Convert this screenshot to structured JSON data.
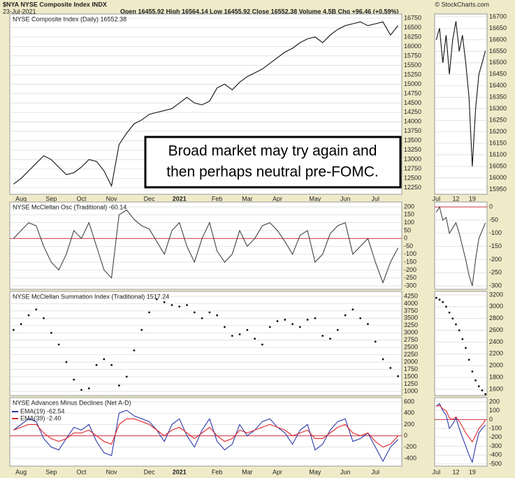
{
  "header": {
    "symbol": "$NYA NYSE Composite Index INDX",
    "date": "23-Jul-2021",
    "quote": "Open 16455.92  High 16564.14  Low 16455.92  Close 16552.38  Volume 4.5B  Chg +96.46 (+0.59%)",
    "source": "© StockCharts.com"
  },
  "chart_data": [
    {
      "type": "line",
      "title": "NYSE Composite Index (Daily) 16552.38",
      "annotation": [
        "Broad market may try again and",
        "then perhaps neutral pre-FOMC."
      ],
      "categories": [
        null,
        "Aug",
        null,
        null,
        null,
        "Sep",
        null,
        null,
        null,
        "Oct",
        null,
        null,
        null,
        "Nov",
        null,
        null,
        null,
        null,
        "Dec",
        null,
        null,
        null,
        "2021",
        null,
        null,
        null,
        null,
        "Feb",
        null,
        null,
        null,
        "Mar",
        null,
        null,
        null,
        "Apr",
        null,
        null,
        null,
        null,
        "May",
        null,
        null,
        null,
        "Jun",
        null,
        null,
        null,
        "Jul",
        null,
        null,
        null
      ],
      "series": [
        {
          "color": "#111111",
          "values": [
            12350,
            12500,
            12700,
            12900,
            13100,
            13000,
            12800,
            12600,
            12650,
            12800,
            13000,
            12950,
            12700,
            12300,
            13400,
            13700,
            13950,
            14050,
            14200,
            14250,
            14300,
            14350,
            14500,
            14650,
            14500,
            14450,
            14550,
            14900,
            15000,
            14850,
            15050,
            15200,
            15300,
            15400,
            15550,
            15700,
            15850,
            15950,
            16100,
            16200,
            16250,
            16100,
            16300,
            16450,
            16550,
            16600,
            16650,
            16550,
            16600,
            16650,
            16300,
            16552.38
          ]
        }
      ],
      "ylim": [
        12080,
        16860
      ],
      "yticks": [
        12250,
        12500,
        12750,
        13000,
        13250,
        13500,
        13750,
        14000,
        14250,
        14500,
        14750,
        15000,
        15250,
        15500,
        15750,
        16000,
        16250,
        16500,
        16750
      ],
      "grid": true
    },
    {
      "type": "line",
      "title": "NYSE McClellan Osc (Traditional) -60.14",
      "series": [
        {
          "color": "#444444",
          "values": [
            0,
            50,
            100,
            80,
            -50,
            -150,
            -200,
            -100,
            50,
            0,
            100,
            -50,
            -200,
            -250,
            150,
            180,
            120,
            80,
            60,
            -20,
            -100,
            50,
            100,
            -50,
            -150,
            0,
            100,
            -80,
            -150,
            -100,
            50,
            -50,
            0,
            80,
            100,
            50,
            -20,
            -100,
            20,
            50,
            -150,
            -100,
            30,
            80,
            100,
            -100,
            -50,
            0,
            -150,
            -280,
            -150,
            -60.14
          ]
        }
      ],
      "ref_lines": [
        {
          "value": 0,
          "color": "#cc3344"
        }
      ],
      "ylim": [
        -322,
        231
      ],
      "yticks": [
        -300,
        -250,
        -200,
        -150,
        -100,
        -50,
        0,
        50,
        100,
        150,
        200
      ],
      "grid": true
    },
    {
      "type": "dots",
      "title": "NYSE McClellan Summation Index (Traditional) 1517.24",
      "series": [
        {
          "color": "#111111",
          "values": [
            3100,
            3300,
            3600,
            3800,
            3500,
            3000,
            2600,
            2000,
            1400,
            1050,
            1100,
            1900,
            2100,
            1900,
            1200,
            1500,
            2400,
            3100,
            3700,
            4150,
            4050,
            3950,
            3900,
            3950,
            3700,
            3500,
            3700,
            3600,
            3200,
            2900,
            2950,
            3100,
            2800,
            2600,
            3200,
            3400,
            3450,
            3300,
            3200,
            3450,
            3500,
            2900,
            2800,
            3100,
            3600,
            3800,
            3500,
            3300,
            2700,
            2100,
            1800,
            1517.24
          ]
        }
      ],
      "ylim": [
        856,
        4417
      ],
      "yticks": [
        1000,
        1250,
        1500,
        1750,
        2000,
        2250,
        2500,
        2750,
        3000,
        3250,
        3500,
        3750,
        4000,
        4250
      ],
      "grid": true
    },
    {
      "type": "line",
      "title": "NYSE Advances Minus Declines (Net A-D)",
      "series": [
        {
          "name": "EMA(19) -62.54",
          "color": "#2b3aa8",
          "values": [
            100,
            200,
            300,
            250,
            -50,
            -200,
            -250,
            -50,
            150,
            100,
            200,
            -100,
            -300,
            -350,
            400,
            450,
            350,
            300,
            250,
            100,
            -100,
            200,
            300,
            0,
            -200,
            100,
            300,
            -100,
            -250,
            -150,
            200,
            0,
            100,
            250,
            300,
            150,
            50,
            -150,
            100,
            200,
            -250,
            -150,
            100,
            250,
            300,
            -100,
            -50,
            50,
            -200,
            -450,
            -200,
            -62.54
          ]
        },
        {
          "name": "EMA(39) -2.40",
          "color": "#e0262b",
          "values": [
            100,
            150,
            200,
            200,
            50,
            -50,
            -100,
            -50,
            50,
            50,
            100,
            0,
            -100,
            -150,
            200,
            300,
            300,
            250,
            200,
            100,
            0,
            100,
            150,
            50,
            -50,
            50,
            150,
            0,
            -100,
            -50,
            100,
            50,
            100,
            150,
            200,
            150,
            100,
            0,
            50,
            100,
            -50,
            -50,
            50,
            150,
            200,
            50,
            0,
            50,
            -100,
            -200,
            -150,
            -2.4
          ]
        }
      ],
      "ref_lines": [
        {
          "value": 0,
          "color": "#cc3344"
        }
      ],
      "ylim": [
        -536,
        674
      ],
      "yticks": [
        -400,
        -200,
        0,
        200,
        400,
        600
      ],
      "grid": true
    },
    {
      "type": "line",
      "categories": [
        "Jul",
        null,
        null,
        null,
        null,
        null,
        "12",
        null,
        null,
        null,
        null,
        "19",
        null,
        null,
        null,
        null
      ],
      "series": [
        {
          "color": "#111111",
          "values": [
            16600,
            16650,
            16500,
            16620,
            16450,
            16600,
            16680,
            16550,
            16620,
            16500,
            16350,
            16050,
            16300,
            16450,
            16500,
            16552.38
          ]
        }
      ],
      "ylim": [
        15929,
        16712
      ],
      "yticks": [
        15950,
        16000,
        16050,
        16100,
        16150,
        16200,
        16250,
        16300,
        16350,
        16400,
        16450,
        16500,
        16550,
        16600,
        16650,
        16700
      ],
      "grid": true
    },
    {
      "type": "line",
      "series": [
        {
          "color": "#444444",
          "values": [
            -20,
            0,
            -50,
            -40,
            -100,
            -80,
            -60,
            -100,
            -150,
            -200,
            -260,
            -300,
            -200,
            -120,
            -90,
            -60.14
          ]
        }
      ],
      "ref_lines": [
        {
          "value": 0,
          "color": "#cc3344"
        }
      ],
      "ylim": [
        -313,
        19
      ],
      "yticks": [
        -300,
        -250,
        -200,
        -150,
        -100,
        -50,
        0
      ],
      "grid": true
    },
    {
      "type": "dots",
      "series": [
        {
          "color": "#111111",
          "values": [
            3150,
            3120,
            3080,
            3000,
            2900,
            2800,
            2700,
            2600,
            2450,
            2300,
            2100,
            1900,
            1750,
            1650,
            1580,
            1517.24
          ]
        }
      ],
      "ylim": [
        1493,
        3259
      ],
      "yticks": [
        1600,
        1800,
        2000,
        2200,
        2400,
        2600,
        2800,
        3000,
        3200
      ],
      "grid": true
    },
    {
      "type": "line",
      "series": [
        {
          "color": "#2b3aa8",
          "values": [
            150,
            180,
            100,
            50,
            -100,
            -50,
            20,
            -100,
            -200,
            -300,
            -400,
            -480,
            -300,
            -150,
            -100,
            -62.54
          ]
        },
        {
          "color": "#e0262b",
          "values": [
            150,
            160,
            120,
            100,
            20,
            0,
            30,
            -20,
            -80,
            -150,
            -200,
            -250,
            -180,
            -100,
            -60,
            -2.4
          ]
        }
      ],
      "ref_lines": [
        {
          "value": 0,
          "color": "#cc3344"
        }
      ],
      "ylim": [
        -524,
        247
      ],
      "yticks": [
        -500,
        -400,
        -300,
        -200,
        -100,
        0,
        100,
        200
      ],
      "grid": true
    }
  ]
}
